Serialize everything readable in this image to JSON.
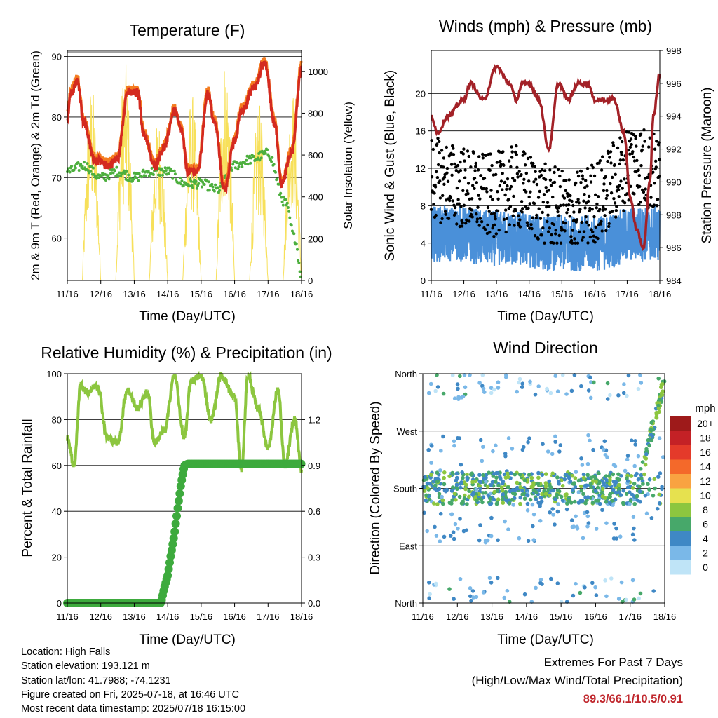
{
  "chart_data": [
    {
      "type": "line",
      "title": "Temperature (F)",
      "xlabel": "Time (Day/UTC)",
      "ylabel": "2m & 9m T (Red, Orange) & 2m Td (Green)",
      "y2label": "Solar Insolation (Yellow)",
      "x_ticks": [
        "11/16",
        "12/16",
        "13/16",
        "14/16",
        "15/16",
        "16/16",
        "17/16",
        "18/16"
      ],
      "ylim": [
        53,
        91
      ],
      "y_ticks": [
        60,
        70,
        80,
        90
      ],
      "y2lim": [
        0,
        1100
      ],
      "y2_ticks": [
        0,
        200,
        400,
        600,
        800,
        1000
      ],
      "grid": "horizontal",
      "colors": {
        "t2m": "#d42a20",
        "t9m": "#f47c20",
        "td2m": "#4daf3e",
        "solar": "#f7e05a"
      },
      "series": [
        {
          "key": "t2m",
          "x": [
            0,
            0.1,
            0.3,
            0.5,
            0.8,
            1.2,
            1.5,
            1.8,
            2.1,
            2.3,
            2.6,
            2.9,
            3.2,
            3.4,
            3.6,
            3.9,
            4.2,
            4.4,
            4.7,
            5.0,
            5.2,
            5.6,
            5.9,
            6.2,
            6.4,
            6.7,
            7.0
          ],
          "values": [
            80,
            84,
            86,
            79,
            73,
            72,
            73,
            84,
            84,
            77,
            72,
            75,
            81,
            78,
            71,
            71,
            84,
            79,
            68,
            76,
            81,
            85,
            89,
            79,
            69,
            74,
            88
          ]
        },
        {
          "key": "td2m",
          "x": [
            0,
            0.5,
            1.0,
            1.5,
            2.0,
            2.5,
            3.0,
            3.5,
            4.0,
            4.5,
            5.0,
            5.5,
            6.0,
            6.5,
            6.8,
            7.0
          ],
          "values": [
            71,
            72,
            70,
            71,
            70,
            71,
            71,
            69,
            69,
            68,
            72,
            73,
            74,
            66,
            60,
            54
          ]
        },
        {
          "key": "solar",
          "day_starts": [
            0,
            1,
            2,
            3,
            4,
            5,
            6
          ],
          "daily_peak": [
            950,
            1050,
            780,
            900,
            1080,
            850,
            920
          ]
        }
      ]
    },
    {
      "type": "line",
      "title": "Winds (mph) & Pressure (mb)",
      "xlabel": "Time (Day/UTC)",
      "ylabel": "Sonic Wind & Gust (Blue, Black)",
      "y2label": "Station Pressure (Maroon)",
      "x_ticks": [
        "11/16",
        "12/16",
        "13/16",
        "14/16",
        "15/16",
        "16/16",
        "17/16",
        "18/16"
      ],
      "ylim": [
        0,
        24.6
      ],
      "y_ticks": [
        0,
        4,
        8,
        12,
        16,
        20
      ],
      "y2lim": [
        984,
        998
      ],
      "y2_ticks": [
        984,
        986,
        988,
        990,
        992,
        994,
        996,
        998
      ],
      "grid": "horizontal",
      "colors": {
        "wind": "#4a90d9",
        "gust": "#000000",
        "pressure": "#a32127"
      },
      "series": [
        {
          "key": "pressure",
          "x": [
            0,
            0.2,
            0.5,
            1.0,
            1.2,
            1.6,
            2.0,
            2.4,
            2.6,
            2.8,
            3.0,
            3.3,
            3.6,
            3.9,
            4.2,
            4.5,
            4.8,
            5.0,
            5.3,
            5.6,
            5.9,
            6.1,
            6.3,
            6.5,
            6.7,
            6.8,
            7.0
          ],
          "values": [
            994,
            993,
            994,
            995,
            996,
            995,
            997,
            996,
            995,
            996,
            996,
            995,
            992,
            996,
            995,
            996,
            996,
            995,
            995,
            995,
            993,
            989,
            987,
            986,
            990,
            994,
            996.5
          ]
        },
        {
          "key": "wind",
          "mean": [
            5,
            5,
            4.5,
            4.5,
            4,
            4,
            4,
            5,
            5
          ]
        },
        {
          "key": "gust",
          "mean": [
            11,
            10,
            9,
            10,
            8,
            7,
            9,
            13,
            11
          ]
        }
      ]
    },
    {
      "type": "line",
      "title": "Relative Humidity (%) & Precipitation (in)",
      "xlabel": "Time (Day/UTC)",
      "ylabel": "Percent & Total Rainfall",
      "x_ticks": [
        "11/16",
        "12/16",
        "13/16",
        "14/16",
        "15/16",
        "16/16",
        "17/16",
        "18/16"
      ],
      "ylim": [
        0,
        100
      ],
      "y_ticks": [
        0,
        20,
        40,
        60,
        80,
        100
      ],
      "y2lim": [
        0,
        1.5
      ],
      "y2_ticks": [
        "0.0",
        "0.3",
        "0.6",
        "0.9",
        "1.2"
      ],
      "grid": "horizontal",
      "colors": {
        "rh": "#8cc63f",
        "precip": "#3daa3d"
      },
      "series": [
        {
          "key": "rh",
          "x": [
            0,
            0.2,
            0.4,
            0.6,
            0.9,
            1.2,
            1.5,
            1.8,
            2.1,
            2.4,
            2.6,
            2.9,
            3.2,
            3.5,
            3.7,
            4.0,
            4.3,
            4.6,
            5.0,
            5.2,
            5.4,
            5.7,
            6.0,
            6.3,
            6.5,
            6.8,
            7.0
          ],
          "values": [
            72,
            60,
            95,
            92,
            95,
            72,
            70,
            93,
            85,
            92,
            70,
            75,
            99,
            72,
            97,
            99,
            80,
            99,
            90,
            58,
            99,
            85,
            68,
            93,
            60,
            80,
            58
          ]
        },
        {
          "key": "precip",
          "x": [
            0,
            2.8,
            2.9,
            3.0,
            3.1,
            3.2,
            3.3,
            3.4,
            3.5,
            3.6,
            7.0
          ],
          "values": [
            0,
            0,
            0.1,
            0.18,
            0.32,
            0.45,
            0.62,
            0.78,
            0.9,
            0.91,
            0.91
          ]
        }
      ]
    },
    {
      "type": "scatter",
      "title": "Wind Direction",
      "xlabel": "Time (Day/UTC)",
      "ylabel": "Direction (Colored By Speed)",
      "x_ticks": [
        "11/16",
        "12/16",
        "13/16",
        "14/16",
        "15/16",
        "16/16",
        "17/16",
        "18/16"
      ],
      "y_ticks": [
        "North",
        "East",
        "South",
        "West",
        "North"
      ],
      "grid": "horizontal",
      "legend": {
        "title": "mph",
        "placement": "right",
        "labels": [
          "20+",
          "18",
          "16",
          "14",
          "12",
          "10",
          "8",
          "6",
          "4",
          "2",
          "0"
        ],
        "colors": [
          "#9e1a1a",
          "#c42126",
          "#e43a2a",
          "#f4692a",
          "#f9a341",
          "#e6e14f",
          "#8cc63f",
          "#47a86a",
          "#3f88c5",
          "#7ab8e8",
          "#bfe4f7"
        ]
      }
    }
  ],
  "info": {
    "location": "Location: High Falls",
    "elevation": "Station elevation: 193.121 m",
    "latlon": "Station lat/lon: 41.7988; -74.1231",
    "created": "Figure created on Fri, 2025-07-18, at 16:46 UTC",
    "recent": "Most recent data timestamp: 2025/07/18 16:15:00"
  },
  "extremes": {
    "heading": "Extremes For Past 7 Days",
    "subheading": "(High/Low/Max Wind/Total Precipitation)",
    "values": "89.3/66.1/10.5/0.91"
  }
}
